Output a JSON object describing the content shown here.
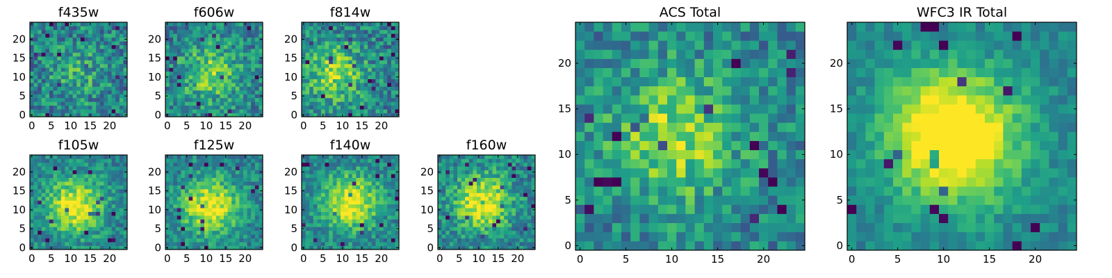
{
  "figure": {
    "description_colormap": "viridis",
    "colors": {
      "viridis_low": "#440154",
      "viridis_mid": "#21918c",
      "viridis_high": "#fde725",
      "frame": "#000000",
      "background": "#ffffff"
    }
  },
  "chart_data": [
    {
      "type": "heatmap",
      "title": "f435w",
      "xlim": [
        0,
        24
      ],
      "ylim": [
        0,
        24
      ],
      "x_ticks": [
        0,
        5,
        10,
        15,
        20
      ],
      "y_ticks": [
        0,
        5,
        10,
        15,
        20
      ],
      "grid": false,
      "colormap": "viridis",
      "pattern": "noise, weak central signal",
      "seed": 11,
      "signal_strength": 0.15,
      "noise_strength": 0.48,
      "center": [
        12,
        11
      ]
    },
    {
      "type": "heatmap",
      "title": "f606w",
      "xlim": [
        0,
        24
      ],
      "ylim": [
        0,
        24
      ],
      "x_ticks": [
        0,
        5,
        10,
        15,
        20
      ],
      "y_ticks": [
        0,
        5,
        10,
        15,
        20
      ],
      "grid": false,
      "colormap": "viridis",
      "pattern": "noisy, faint central source",
      "seed": 12,
      "signal_strength": 0.35,
      "noise_strength": 0.45,
      "center": [
        11,
        11
      ]
    },
    {
      "type": "heatmap",
      "title": "f814w",
      "xlim": [
        0,
        24
      ],
      "ylim": [
        0,
        24
      ],
      "x_ticks": [
        0,
        5,
        10,
        15,
        20
      ],
      "y_ticks": [
        0,
        5,
        10,
        15,
        20
      ],
      "grid": false,
      "colormap": "viridis",
      "pattern": "noisy, faint central source",
      "seed": 13,
      "signal_strength": 0.4,
      "noise_strength": 0.45,
      "center": [
        8,
        11
      ]
    },
    {
      "type": "heatmap",
      "title": "f105w",
      "xlim": [
        0,
        24
      ],
      "ylim": [
        0,
        24
      ],
      "x_ticks": [
        0,
        5,
        10,
        15,
        20
      ],
      "y_ticks": [
        0,
        5,
        10,
        15,
        20
      ],
      "grid": false,
      "colormap": "viridis",
      "pattern": "central source",
      "seed": 21,
      "signal_strength": 0.55,
      "noise_strength": 0.35,
      "center": [
        11,
        11
      ]
    },
    {
      "type": "heatmap",
      "title": "f125w",
      "xlim": [
        0,
        24
      ],
      "ylim": [
        0,
        24
      ],
      "x_ticks": [
        0,
        5,
        10,
        15,
        20
      ],
      "y_ticks": [
        0,
        5,
        10,
        15,
        20
      ],
      "grid": false,
      "colormap": "viridis",
      "pattern": "central source",
      "seed": 22,
      "signal_strength": 0.55,
      "noise_strength": 0.35,
      "center": [
        11,
        11
      ]
    },
    {
      "type": "heatmap",
      "title": "f140w",
      "xlim": [
        0,
        24
      ],
      "ylim": [
        0,
        24
      ],
      "x_ticks": [
        0,
        5,
        10,
        15,
        20
      ],
      "y_ticks": [
        0,
        5,
        10,
        15,
        20
      ],
      "grid": false,
      "colormap": "viridis",
      "pattern": "central source",
      "seed": 23,
      "signal_strength": 0.55,
      "noise_strength": 0.35,
      "center": [
        12,
        12
      ]
    },
    {
      "type": "heatmap",
      "title": "f160w",
      "xlim": [
        0,
        24
      ],
      "ylim": [
        0,
        24
      ],
      "x_ticks": [
        0,
        5,
        10,
        15,
        20
      ],
      "y_ticks": [
        0,
        5,
        10,
        15,
        20
      ],
      "grid": false,
      "colormap": "viridis",
      "pattern": "central source",
      "seed": 24,
      "signal_strength": 0.55,
      "noise_strength": 0.38,
      "center": [
        11,
        12
      ]
    },
    {
      "type": "heatmap",
      "title": "ACS Total",
      "xlim": [
        0,
        24
      ],
      "ylim": [
        0,
        24
      ],
      "x_ticks": [
        0,
        5,
        10,
        15,
        20
      ],
      "y_ticks": [
        0,
        5,
        10,
        15,
        20
      ],
      "grid": false,
      "colormap": "viridis",
      "pattern": "noisy, broad central source",
      "seed": 31,
      "signal_strength": 0.4,
      "noise_strength": 0.4,
      "center": [
        10,
        12
      ]
    },
    {
      "type": "heatmap",
      "title": "WFC3 IR Total",
      "xlim": [
        0,
        24
      ],
      "ylim": [
        0,
        24
      ],
      "x_ticks": [
        0,
        5,
        10,
        15,
        20
      ],
      "y_ticks": [
        0,
        5,
        10,
        15,
        20
      ],
      "grid": false,
      "colormap": "viridis",
      "pattern": "strong central source",
      "seed": 32,
      "signal_strength": 0.75,
      "noise_strength": 0.22,
      "center": [
        11,
        12
      ]
    }
  ]
}
